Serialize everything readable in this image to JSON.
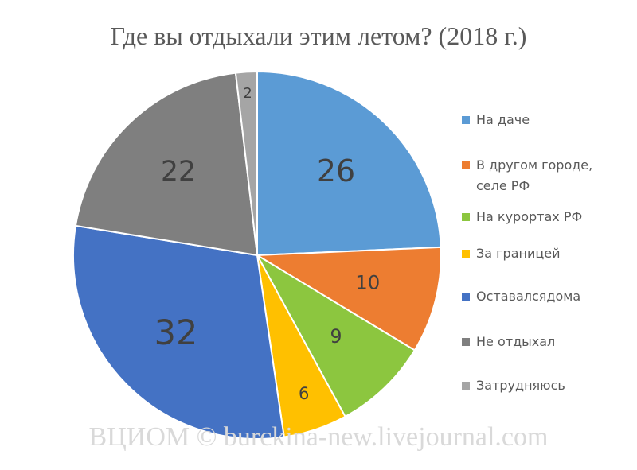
{
  "chart_data": {
    "type": "pie",
    "title": "Где вы отдыхали этим летом? (2018 г.)",
    "categories": [
      "На даче",
      "В другом городе, селе РФ",
      "На курортах РФ",
      "За границей",
      "Оставалсядома",
      "Не отдыхал",
      "Затрудняюсь"
    ],
    "values": [
      26,
      10,
      9,
      6,
      32,
      22,
      2
    ],
    "colors": [
      "#5b9bd5",
      "#ed7d31",
      "#8cc63f",
      "#ffc000",
      "#4472c4",
      "#7f7f7f",
      "#a5a5a5"
    ],
    "legend": "right",
    "watermark": "ВЦИОМ © burckina-new.livejournal.com"
  }
}
